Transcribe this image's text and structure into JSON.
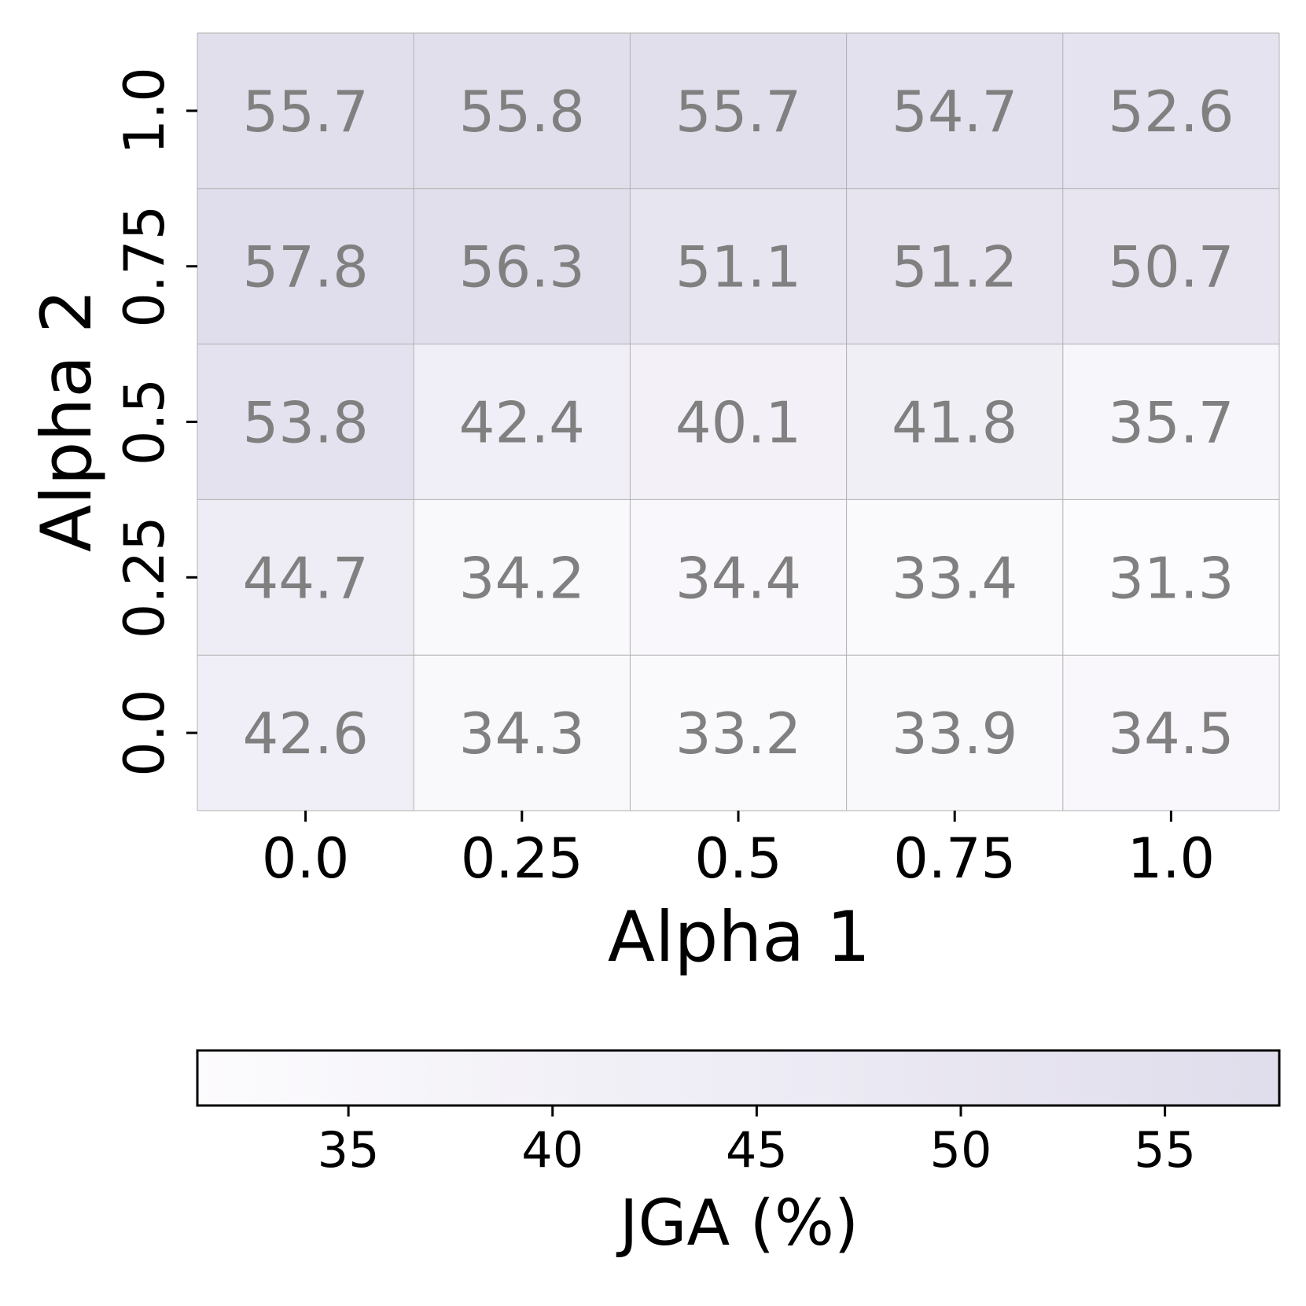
{
  "chart_data": {
    "type": "heatmap",
    "title": "",
    "xlabel": "Alpha 1",
    "ylabel": "Alpha 2",
    "x_categories": [
      "0.0",
      "0.25",
      "0.5",
      "0.75",
      "1.0"
    ],
    "y_categories": [
      "1.0",
      "0.75",
      "0.5",
      "0.25",
      "0.0"
    ],
    "values": [
      [
        55.7,
        55.8,
        55.7,
        54.7,
        52.6
      ],
      [
        57.8,
        56.3,
        51.1,
        51.2,
        50.7
      ],
      [
        53.8,
        42.4,
        40.1,
        41.8,
        35.7
      ],
      [
        44.7,
        34.2,
        34.4,
        33.4,
        31.3
      ],
      [
        42.6,
        34.3,
        33.2,
        33.9,
        34.5
      ]
    ],
    "value_labels": [
      [
        "55.7",
        "55.8",
        "55.7",
        "54.7",
        "52.6"
      ],
      [
        "57.8",
        "56.3",
        "51.1",
        "51.2",
        "50.7"
      ],
      [
        "53.8",
        "42.4",
        "40.1",
        "41.8",
        "35.7"
      ],
      [
        "44.7",
        "34.2",
        "34.4",
        "33.4",
        "31.3"
      ],
      [
        "42.6",
        "34.3",
        "33.2",
        "33.9",
        "34.5"
      ]
    ],
    "colorbar": {
      "label": "JGA (%)",
      "orientation": "horizontal",
      "placement": "bottom",
      "range": [
        31.3,
        57.8
      ],
      "ticks": [
        35,
        40,
        45,
        50,
        55
      ],
      "tick_labels": [
        "35",
        "40",
        "45",
        "50",
        "55"
      ]
    },
    "colors": {
      "low": "#fcfbfd",
      "high": "#e0ddec",
      "cell_text": "#808080",
      "grid": "#b0b0b0"
    }
  }
}
